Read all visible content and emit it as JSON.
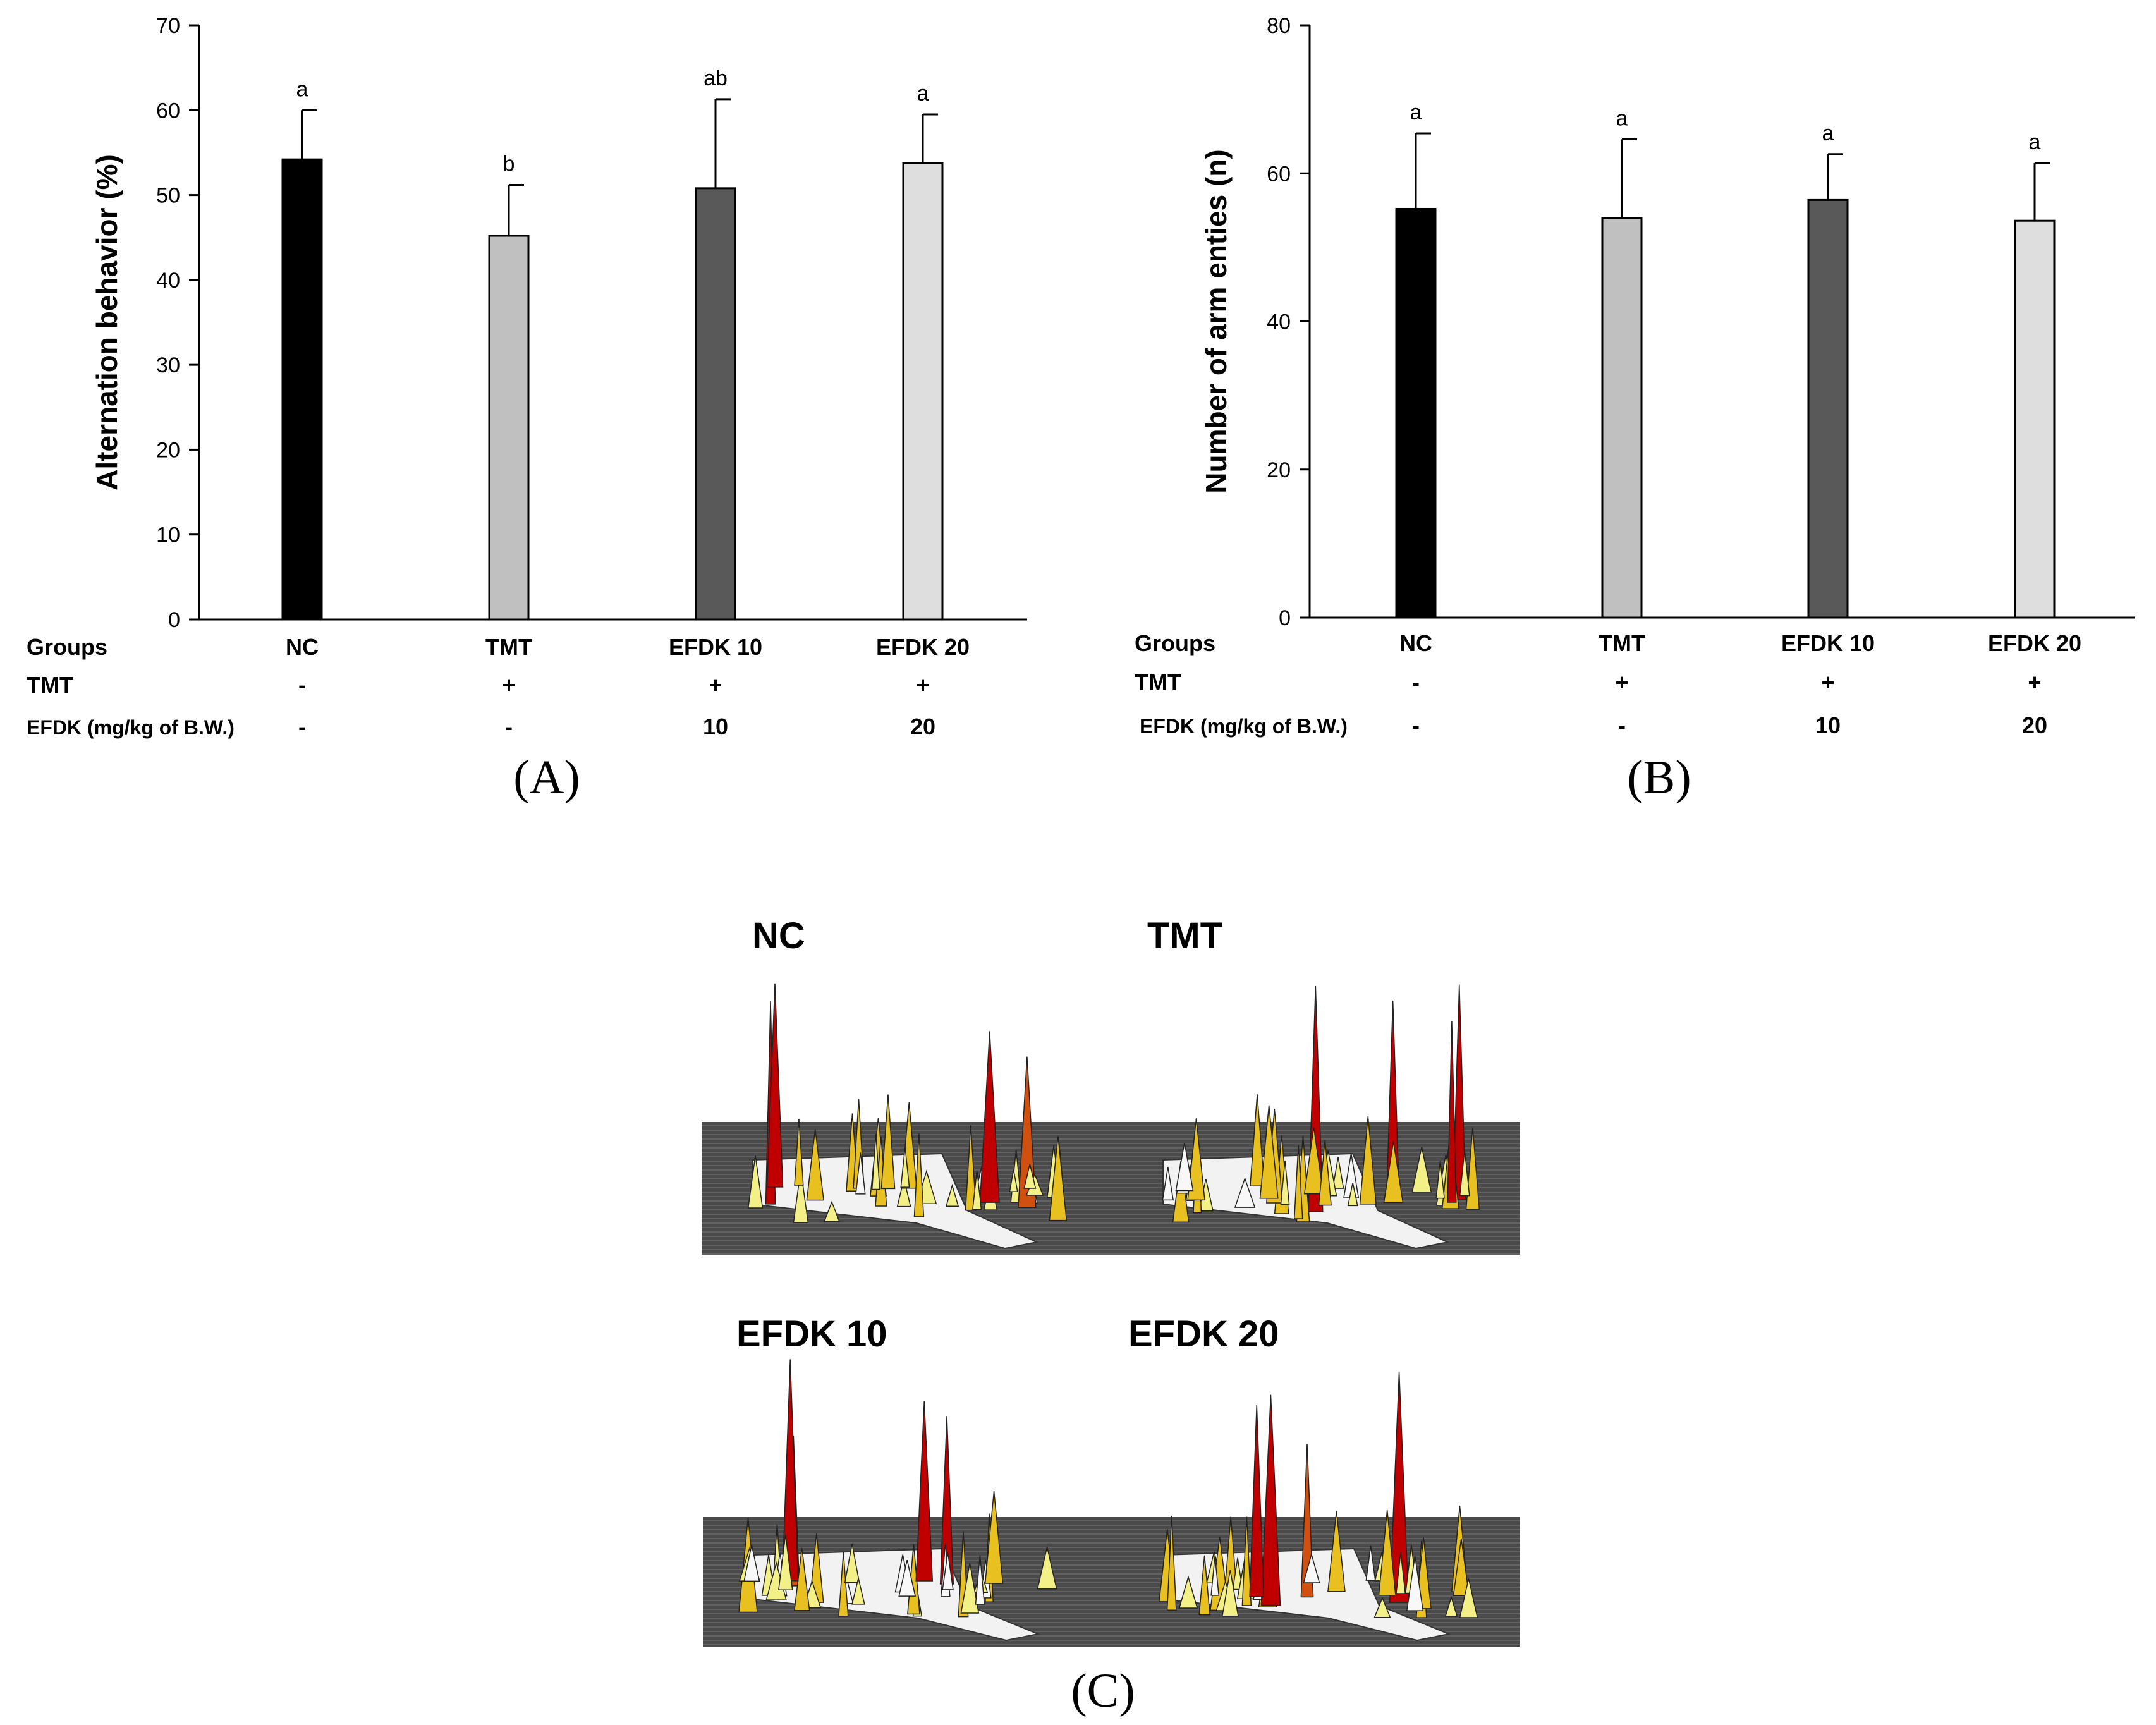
{
  "chart_data": [
    {
      "panel": "A",
      "panel_label": "(A)",
      "type": "bar",
      "title": "",
      "xlabel": "",
      "ylabel": "Alternation behavior (%)",
      "ylim": [
        0,
        70
      ],
      "yticks": [
        "0",
        "10",
        "20",
        "30",
        "40",
        "50",
        "60",
        "70"
      ],
      "categories": [
        "NC",
        "TMT",
        "EFDK 10",
        "EFDK 20"
      ],
      "values": [
        54.2,
        45.2,
        50.8,
        53.8
      ],
      "errors": [
        5.8,
        6.0,
        10.5,
        5.7
      ],
      "significance": [
        "a",
        "b",
        "ab",
        "a"
      ],
      "bar_colors": [
        "#000000",
        "#c0c0c0",
        "#595959",
        "#dedede"
      ],
      "row_labels": [
        "Groups",
        "TMT",
        "EFDK (mg/kg of B.W.)"
      ],
      "tmt_row": [
        "-",
        "+",
        "+",
        "+"
      ],
      "efdk_row": [
        "-",
        "-",
        "10",
        "20"
      ]
    },
    {
      "panel": "B",
      "panel_label": "(B)",
      "type": "bar",
      "title": "",
      "xlabel": "",
      "ylabel": "Number of arm enties (n)",
      "ylim": [
        0,
        80
      ],
      "yticks": [
        "0",
        "20",
        "40",
        "60",
        "80"
      ],
      "categories": [
        "NC",
        "TMT",
        "EFDK 10",
        "EFDK 20"
      ],
      "values": [
        55.2,
        54.0,
        56.4,
        53.6
      ],
      "errors": [
        10.2,
        10.6,
        6.2,
        7.8
      ],
      "significance": [
        "a",
        "a",
        "a",
        "a"
      ],
      "bar_colors": [
        "#000000",
        "#c0c0c0",
        "#595959",
        "#dedede"
      ],
      "row_labels": [
        "Groups",
        "TMT",
        "EFDK (mg/kg of B.W.)"
      ],
      "tmt_row": [
        "-",
        "+",
        "+",
        "+"
      ],
      "efdk_row": [
        "-",
        "-",
        "10",
        "20"
      ]
    }
  ],
  "panel_c": {
    "panel_label": "(C)",
    "maps": [
      {
        "label": "NC"
      },
      {
        "label": "TMT"
      },
      {
        "label": "EFDK 10"
      },
      {
        "label": "EFDK 20"
      }
    ],
    "floor_color": "#4a4a4a",
    "peak_colors": [
      "#f4f088",
      "#e8c020",
      "#d05010",
      "#c00000"
    ]
  }
}
